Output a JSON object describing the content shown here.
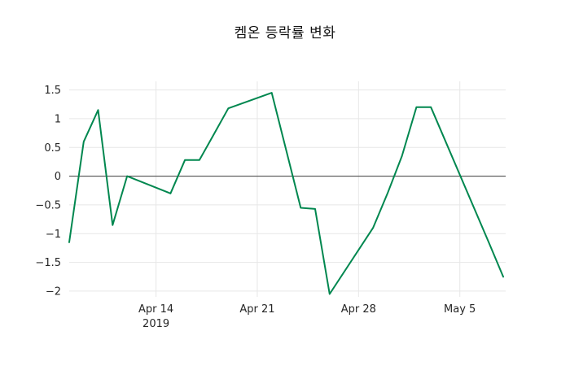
{
  "chart_data": {
    "type": "line",
    "title": "켐온 등락률 변화",
    "xlabel": "",
    "ylabel": "",
    "legend": "none",
    "grid": true,
    "zero_line": true,
    "xlim": [
      "2019-04-08",
      "2019-05-08"
    ],
    "ylim": [
      -2.1,
      1.65
    ],
    "x": [
      "2019-04-08",
      "2019-04-09",
      "2019-04-10",
      "2019-04-11",
      "2019-04-12",
      "2019-04-15",
      "2019-04-16",
      "2019-04-17",
      "2019-04-18",
      "2019-04-19",
      "2019-04-22",
      "2019-04-23",
      "2019-04-24",
      "2019-04-25",
      "2019-04-26",
      "2019-04-29",
      "2019-04-30",
      "2019-05-01",
      "2019-05-02",
      "2019-05-03",
      "2019-05-07",
      "2019-05-08"
    ],
    "values": [
      -1.15,
      0.6,
      1.15,
      -0.85,
      0.0,
      -0.3,
      0.28,
      0.28,
      0.73,
      1.18,
      1.45,
      0.45,
      -0.55,
      -0.57,
      -2.05,
      -0.9,
      -0.3,
      0.35,
      1.2,
      1.2,
      -1.15,
      -1.75
    ],
    "x_ticks": [
      {
        "date": "2019-04-14",
        "label": "Apr 14",
        "sublabel": "2019"
      },
      {
        "date": "2019-04-21",
        "label": "Apr 21",
        "sublabel": ""
      },
      {
        "date": "2019-04-28",
        "label": "Apr 28",
        "sublabel": ""
      },
      {
        "date": "2019-05-05",
        "label": "May 5",
        "sublabel": ""
      }
    ],
    "y_ticks": [
      {
        "value": 1.5,
        "label": "1.5"
      },
      {
        "value": 1.0,
        "label": "1"
      },
      {
        "value": 0.5,
        "label": "0.5"
      },
      {
        "value": 0.0,
        "label": "0"
      },
      {
        "value": -0.5,
        "label": "−0.5"
      },
      {
        "value": -1.0,
        "label": "−1"
      },
      {
        "value": -1.5,
        "label": "−1.5"
      },
      {
        "value": -2.0,
        "label": "−2"
      }
    ],
    "colors": {
      "line": "#00874f",
      "grid": "#e7e7e7",
      "zero_line": "#3d3d3d",
      "tick_label": "#262626",
      "title": "#111111",
      "background": "#ffffff"
    }
  }
}
